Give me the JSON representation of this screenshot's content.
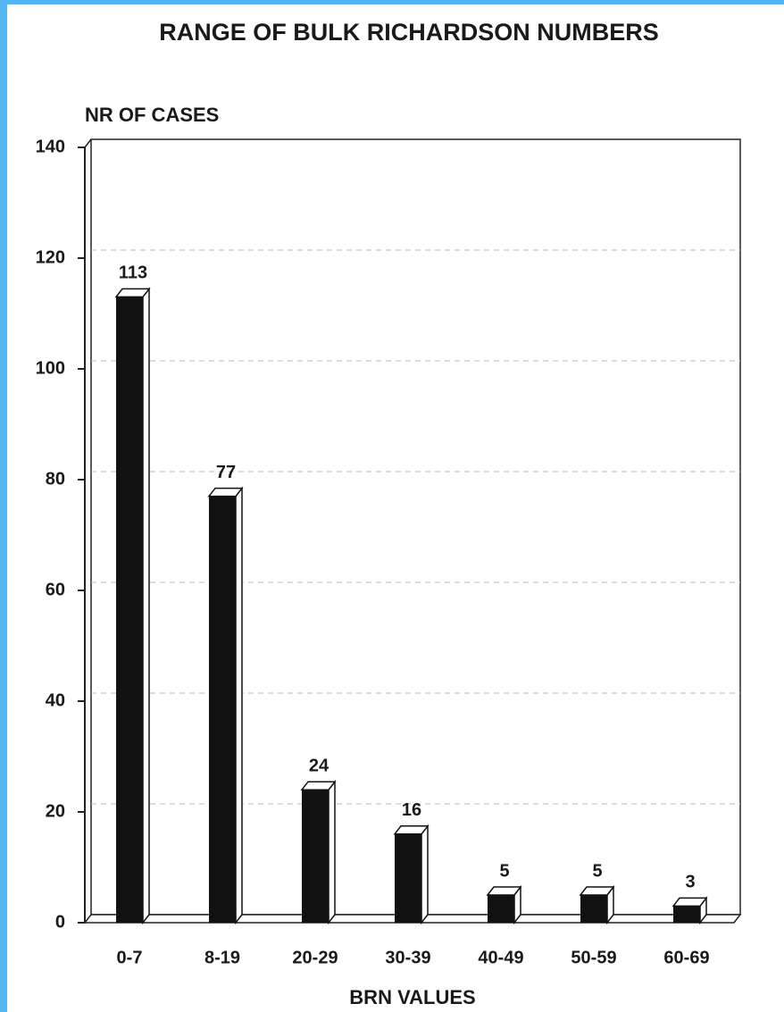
{
  "chart_data": {
    "type": "bar",
    "title": "RANGE OF BULK RICHARDSON NUMBERS",
    "y_label": "NR OF CASES",
    "x_label": "BRN VALUES",
    "categories": [
      "0-7",
      "8-19",
      "20-29",
      "30-39",
      "40-49",
      "50-59",
      "60-69"
    ],
    "values": [
      113,
      77,
      24,
      16,
      5,
      5,
      3
    ],
    "color": "#111111",
    "ylim": [
      0,
      140
    ],
    "yticks": [
      0,
      20,
      40,
      60,
      80,
      100,
      120,
      140
    ],
    "grid": true
  }
}
